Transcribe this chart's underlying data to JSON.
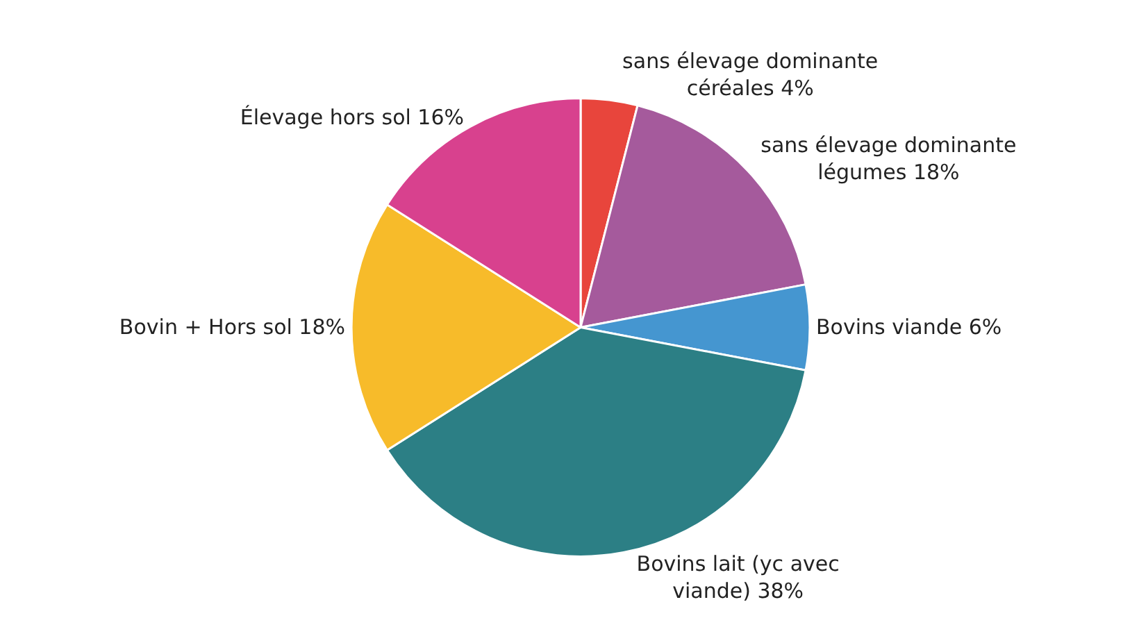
{
  "chart_data": {
    "type": "pie",
    "categories": [
      "sans élevage dominante céréales",
      "sans élevage dominante légumes",
      "Bovins viande",
      "Bovins lait (yc avec viande)",
      "Bovin + Hors sol",
      "Élevage hors sol"
    ],
    "values": [
      4,
      18,
      6,
      38,
      18,
      16
    ],
    "colors": [
      "#e8453c",
      "#a55a9c",
      "#4596d0",
      "#2c7f85",
      "#f7bb2a",
      "#d8418e"
    ],
    "value_labels": [
      "4%",
      "18%",
      "6%",
      "38%",
      "18%",
      "16%"
    ],
    "legend": false
  }
}
